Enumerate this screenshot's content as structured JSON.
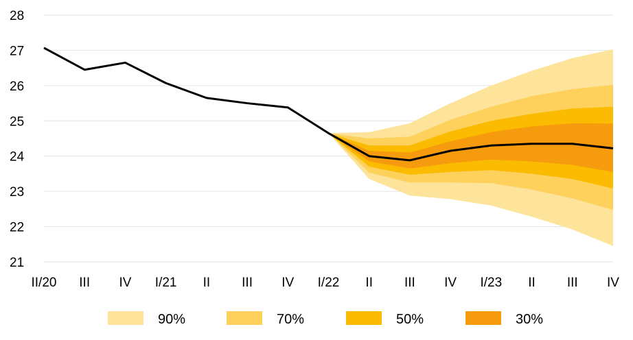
{
  "chart_data": {
    "type": "area",
    "title": "",
    "xlabel": "",
    "ylabel": "",
    "categories": [
      "II/20",
      "III",
      "IV",
      "I/21",
      "II",
      "III",
      "IV",
      "I/22",
      "II",
      "III",
      "IV",
      "I/23",
      "II",
      "III",
      "IV"
    ],
    "ylim": [
      21,
      28
    ],
    "yticks": [
      21,
      22,
      23,
      24,
      25,
      26,
      27,
      28
    ],
    "grid": true,
    "legend_position": "bottom",
    "series": [
      {
        "values": [
          27.07,
          26.45,
          26.65,
          26.07,
          25.65,
          25.5,
          25.38,
          24.65,
          24.0,
          23.88,
          24.15,
          24.3,
          24.35,
          24.35,
          24.22
        ]
      }
    ],
    "fan": {
      "start_index": 7,
      "bands": [
        {
          "name": "90%",
          "color": "#fde49a",
          "upper": [
            24.65,
            24.68,
            24.93,
            25.5,
            26.0,
            26.42,
            26.78,
            27.03
          ],
          "lower": [
            24.65,
            23.35,
            22.88,
            22.78,
            22.6,
            22.28,
            21.92,
            21.45
          ]
        },
        {
          "name": "70%",
          "color": "#fdd15c",
          "upper": [
            24.65,
            24.5,
            24.55,
            25.03,
            25.4,
            25.7,
            25.9,
            26.02
          ],
          "lower": [
            24.65,
            23.53,
            23.25,
            23.25,
            23.23,
            23.05,
            22.8,
            22.47
          ]
        },
        {
          "name": "50%",
          "color": "#fbbb00",
          "upper": [
            24.65,
            24.3,
            24.3,
            24.7,
            25.0,
            25.2,
            25.35,
            25.4
          ],
          "lower": [
            24.65,
            23.7,
            23.47,
            23.55,
            23.6,
            23.5,
            23.35,
            23.08
          ]
        },
        {
          "name": "30%",
          "color": "#f59b0d",
          "upper": [
            24.65,
            24.15,
            24.1,
            24.42,
            24.68,
            24.84,
            24.93,
            24.92
          ],
          "lower": [
            24.65,
            23.85,
            23.65,
            23.8,
            23.9,
            23.85,
            23.75,
            23.55
          ]
        }
      ]
    },
    "legend": [
      {
        "label": "90%",
        "color": "#fde49a"
      },
      {
        "label": "70%",
        "color": "#fdd15c"
      },
      {
        "label": "50%",
        "color": "#fbbb00"
      },
      {
        "label": "30%",
        "color": "#f59b0d"
      }
    ],
    "colors": {
      "line": "#000000",
      "grid": "#e3e3e3"
    }
  }
}
